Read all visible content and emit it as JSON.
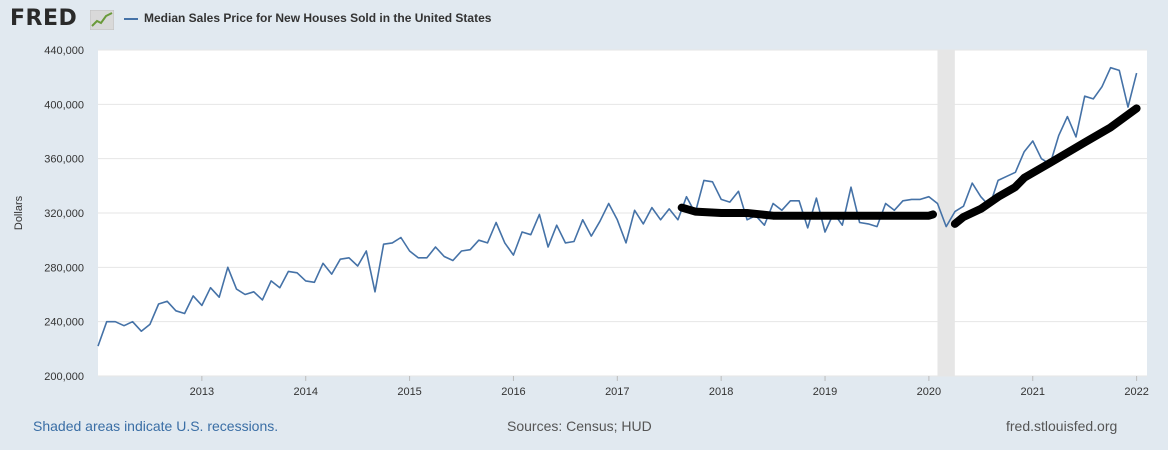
{
  "header": {
    "logo_text": "FRED",
    "legend_label": "Median Sales Price for New Houses Sold in the United States"
  },
  "footer": {
    "recession_note": "Shaded areas indicate U.S. recessions.",
    "sources": "Sources: Census; HUD",
    "site": "fred.stlouisfed.org"
  },
  "colors": {
    "series": "#4572a7",
    "annotation": "#000000",
    "recession": "#e6e6e6",
    "background": "#e1e9f0"
  },
  "chart_data": {
    "type": "line",
    "title": "Median Sales Price for New Houses Sold in the United States",
    "ylabel": "Dollars",
    "xlabel": "",
    "xlim": [
      2012.0,
      2022.1
    ],
    "ylim": [
      200000,
      440000
    ],
    "y_ticks": [
      200000,
      240000,
      280000,
      320000,
      360000,
      400000,
      440000
    ],
    "y_tick_labels": [
      "200,000",
      "240,000",
      "280,000",
      "320,000",
      "360,000",
      "400,000",
      "440,000"
    ],
    "x_ticks": [
      2013,
      2014,
      2015,
      2016,
      2017,
      2018,
      2019,
      2020,
      2021,
      2022
    ],
    "x_tick_labels": [
      "2013",
      "2014",
      "2015",
      "2016",
      "2017",
      "2018",
      "2019",
      "2020",
      "2021",
      "2022"
    ],
    "grid": true,
    "recessions": [
      {
        "start": 2020.083,
        "end": 2020.25
      }
    ],
    "series": [
      {
        "name": "Median Sales Price for New Houses Sold in the United States",
        "start_year": 2012.0,
        "step": 0.0833333,
        "values": [
          222000,
          240000,
          240000,
          237000,
          240000,
          233000,
          238000,
          253000,
          255000,
          248000,
          246000,
          259000,
          252000,
          265000,
          258000,
          280000,
          264000,
          260000,
          262000,
          256000,
          270000,
          265000,
          277000,
          276000,
          270000,
          269000,
          283000,
          275000,
          286000,
          287000,
          281000,
          292000,
          262000,
          297000,
          298000,
          302000,
          292000,
          287000,
          287000,
          295000,
          288000,
          285000,
          292000,
          293000,
          300000,
          298000,
          313000,
          298000,
          289000,
          306000,
          304000,
          319000,
          295000,
          311000,
          298000,
          299000,
          315000,
          303000,
          314000,
          327000,
          315000,
          298000,
          322000,
          312000,
          324000,
          315000,
          323000,
          315000,
          332000,
          320000,
          344000,
          343000,
          330000,
          328000,
          336000,
          315000,
          318000,
          311000,
          327000,
          322000,
          329000,
          329000,
          309000,
          331000,
          306000,
          320000,
          311000,
          339000,
          313000,
          312000,
          310000,
          327000,
          322000,
          329000,
          330000,
          330000,
          332000,
          327000,
          310000,
          321000,
          325000,
          342000,
          332000,
          325000,
          344000,
          347000,
          350000,
          365000,
          373000,
          360000,
          356000,
          377000,
          391000,
          376000,
          406000,
          404000,
          413000,
          427000,
          425000,
          398000,
          423000
        ]
      }
    ],
    "annotations": [
      {
        "type": "hand-drawn trend line",
        "points": [
          [
            2017.62,
            324000
          ],
          [
            2017.75,
            321000
          ],
          [
            2018.0,
            320000
          ],
          [
            2018.25,
            320000
          ],
          [
            2018.5,
            318000
          ],
          [
            2019.0,
            318000
          ],
          [
            2019.5,
            318000
          ],
          [
            2020.0,
            318000
          ],
          [
            2020.04,
            319000
          ]
        ]
      },
      {
        "type": "hand-drawn trend line",
        "points": [
          [
            2020.25,
            312000
          ],
          [
            2020.33,
            317000
          ],
          [
            2020.5,
            323000
          ],
          [
            2020.67,
            332000
          ],
          [
            2020.83,
            339000
          ],
          [
            2020.92,
            346000
          ],
          [
            2021.17,
            357000
          ],
          [
            2021.5,
            372000
          ],
          [
            2021.75,
            383000
          ],
          [
            2022.0,
            397000
          ]
        ]
      }
    ]
  }
}
